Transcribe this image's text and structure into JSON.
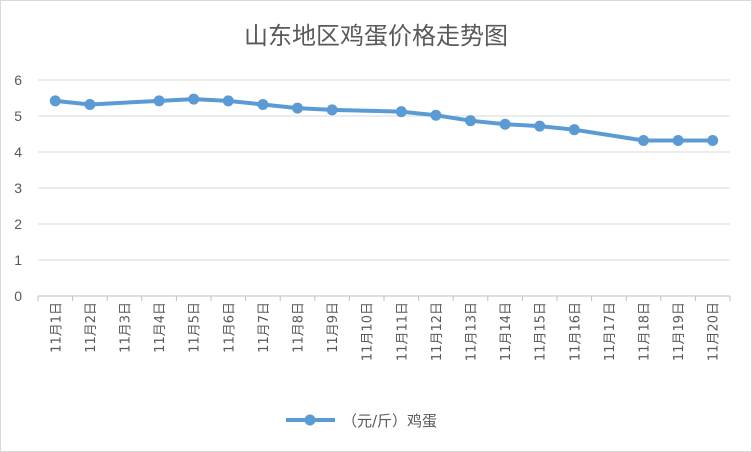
{
  "chart_data": {
    "type": "line",
    "title": "山东地区鸡蛋价格走势图",
    "xlabel": "",
    "ylabel": "",
    "categories": [
      "11月1日",
      "11月2日",
      "11月3日",
      "11月4日",
      "11月5日",
      "11月6日",
      "11月7日",
      "11月8日",
      "11月9日",
      "11月10日",
      "11月11日",
      "11月12日",
      "11月13日",
      "11月14日",
      "11月15日",
      "11月16日",
      "11月17日",
      "11月18日",
      "11月19日",
      "11月20日"
    ],
    "series": [
      {
        "name": "（元/斤）鸡蛋",
        "color": "#5b9bd5",
        "values": [
          5.42,
          5.32,
          null,
          5.42,
          5.47,
          5.42,
          5.32,
          5.22,
          5.17,
          null,
          5.12,
          5.02,
          4.87,
          4.77,
          4.72,
          4.62,
          null,
          4.32,
          4.32,
          4.32
        ]
      }
    ],
    "ylim": [
      0,
      6
    ],
    "yticks": [
      "0",
      "1",
      "2",
      "3",
      "4",
      "5",
      "6"
    ],
    "grid": true,
    "legend_position": "bottom"
  }
}
